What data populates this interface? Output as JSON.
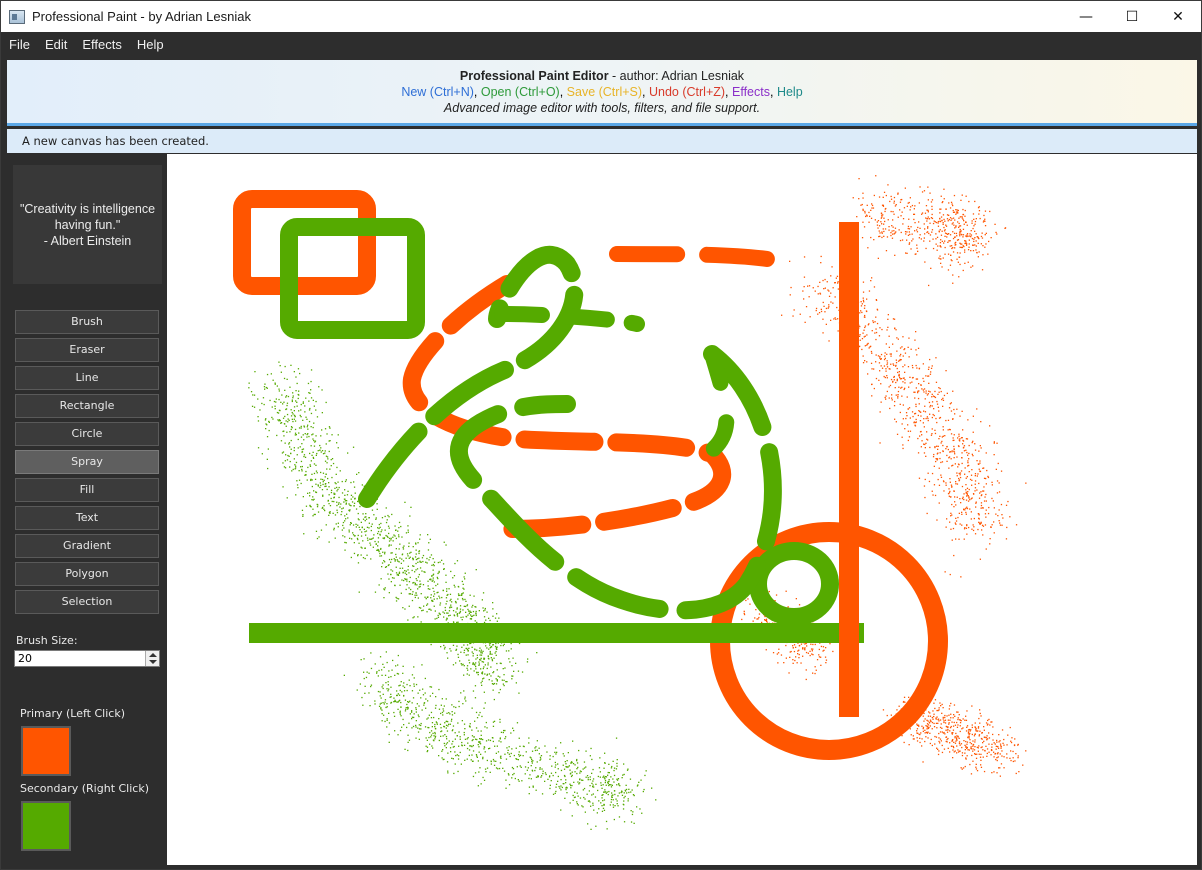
{
  "window": {
    "title": "Professional Paint - by Adrian Lesniak",
    "controls": {
      "minimize": "—",
      "maximize": "☐",
      "close": "✕"
    }
  },
  "menu": [
    "File",
    "Edit",
    "Effects",
    "Help"
  ],
  "header": {
    "title": "Professional Paint Editor",
    "author": " - author: Adrian Lesniak",
    "links": [
      {
        "label": "New (Ctrl+N)",
        "color": "#2f6fd6"
      },
      {
        "label": "Open (Ctrl+O)",
        "color": "#2e9a3a"
      },
      {
        "label": "Save (Ctrl+S)",
        "color": "#e8b428"
      },
      {
        "label": "Undo (Ctrl+Z)",
        "color": "#d83a2a"
      },
      {
        "label": "Effects",
        "color": "#8b2fc9"
      },
      {
        "label": "Help",
        "color": "#1f8a8a"
      }
    ],
    "subtitle": "Advanced image editor with tools, filters, and file support."
  },
  "status": "A new canvas has been created.",
  "sidebar": {
    "quote": {
      "text": "\"Creativity is intelligence having fun.\"",
      "author": "- Albert Einstein"
    },
    "tools": [
      "Brush",
      "Eraser",
      "Line",
      "Rectangle",
      "Circle",
      "Spray",
      "Fill",
      "Text",
      "Gradient",
      "Polygon",
      "Selection"
    ],
    "active_tool": "Spray",
    "brush_size_label": "Brush Size:",
    "brush_size": "20",
    "primary_label": "Primary (Left Click)",
    "secondary_label": "Secondary (Right Click)",
    "primary_color": "#ff5500",
    "secondary_color": "#55aa00"
  }
}
